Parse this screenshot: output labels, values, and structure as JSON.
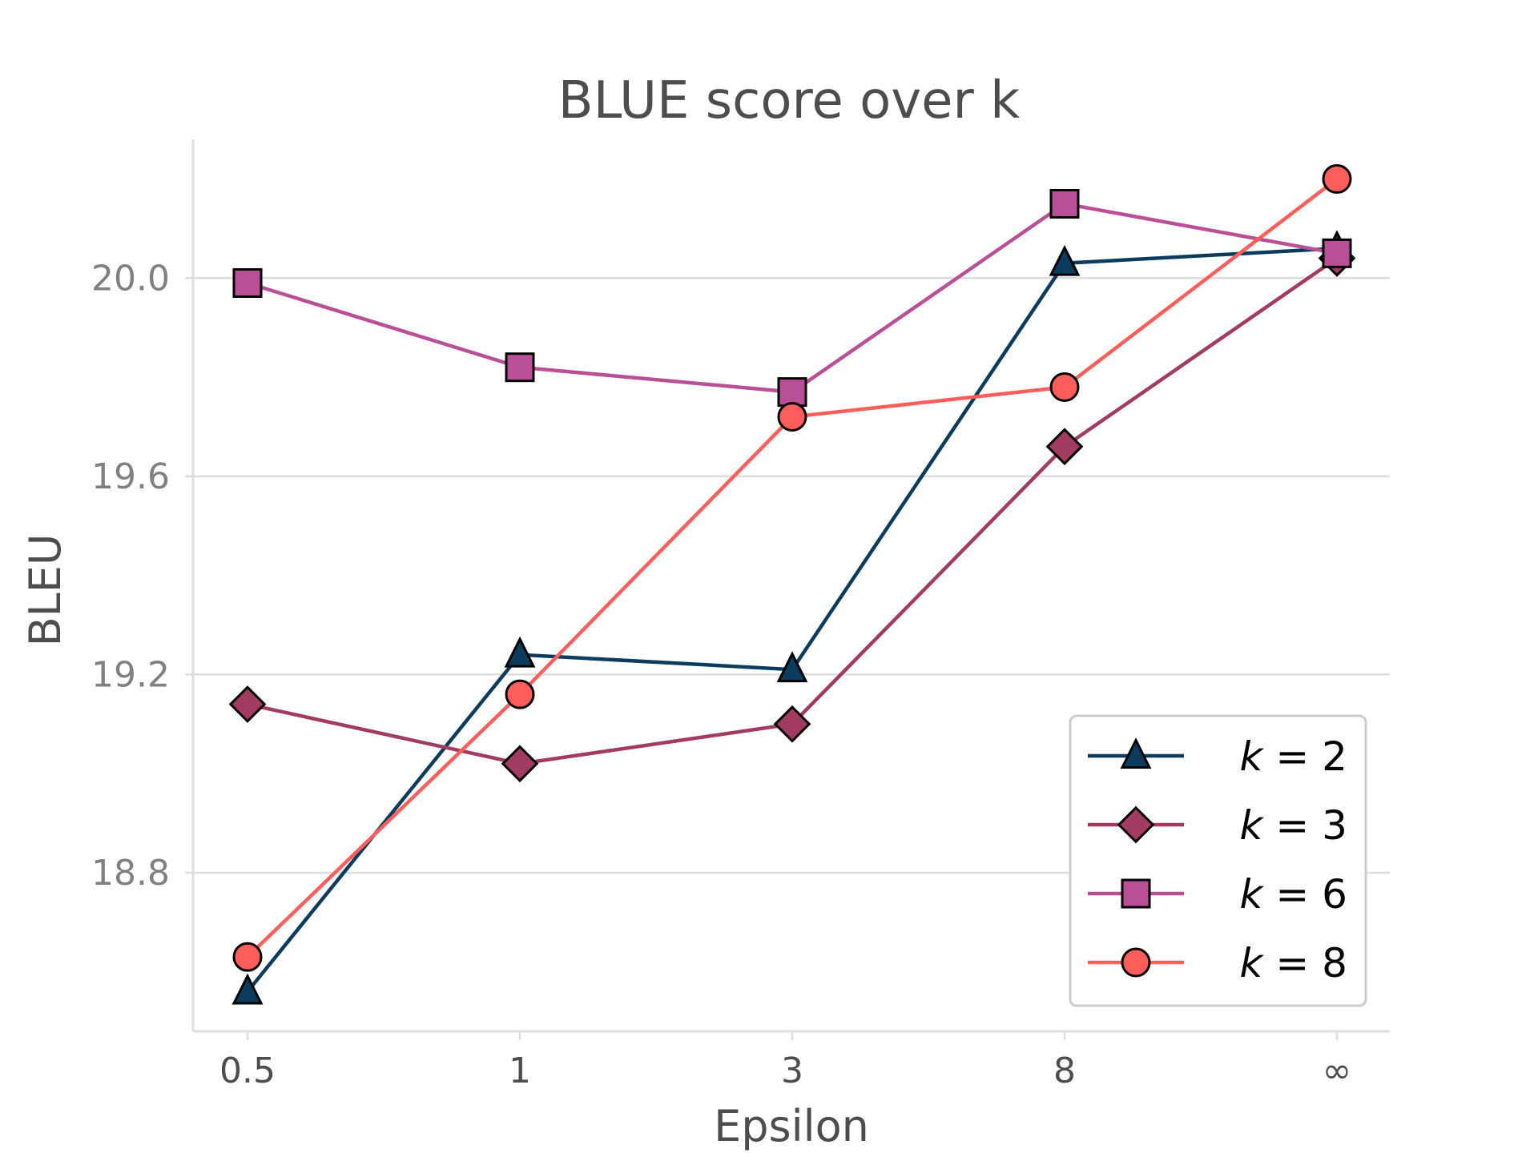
{
  "chart_data": {
    "type": "line",
    "title": "BLUE score over k",
    "xlabel": "Epsilon",
    "ylabel": "BLEU",
    "categories": [
      "0.5",
      "1",
      "3",
      "8",
      "∞"
    ],
    "yticks": [
      "18.8",
      "19.2",
      "19.6",
      "20.0"
    ],
    "ylim": [
      18.48,
      20.28
    ],
    "grid": "horizontal",
    "legend_position": "lower-right",
    "series": [
      {
        "name": "k = 2",
        "var": "k",
        "num": "2",
        "marker": "triangle",
        "color": "#0b3c5d",
        "values": [
          18.56,
          19.24,
          19.21,
          20.03,
          20.06
        ]
      },
      {
        "name": "k = 3",
        "var": "k",
        "num": "3",
        "marker": "diamond",
        "color": "#a23b62",
        "values": [
          19.14,
          19.02,
          19.1,
          19.66,
          20.04
        ]
      },
      {
        "name": "k = 6",
        "var": "k",
        "num": "6",
        "marker": "square",
        "color": "#b94f96",
        "values": [
          19.99,
          19.82,
          19.77,
          20.15,
          20.05
        ]
      },
      {
        "name": "k = 8",
        "var": "k",
        "num": "8",
        "marker": "circle",
        "color": "#ff5e5b",
        "values": [
          18.63,
          19.16,
          19.72,
          19.78,
          20.2
        ]
      }
    ]
  }
}
